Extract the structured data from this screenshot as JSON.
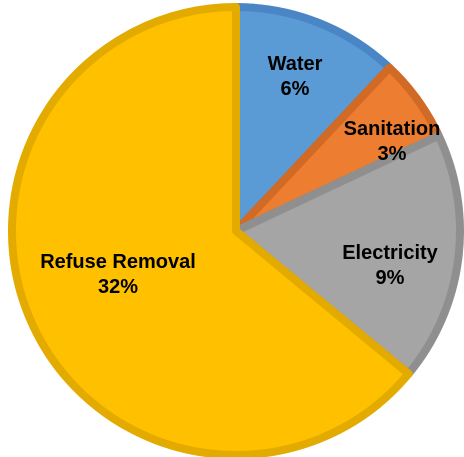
{
  "chart_data": {
    "type": "pie",
    "start_angle_deg": 0,
    "direction": "clockwise",
    "slices": [
      {
        "label": "Water",
        "percent_label": "6%",
        "value": 6,
        "color": "#5B9BD5",
        "border": "#4A86C5",
        "text_color": "#000000"
      },
      {
        "label": "Sanitation",
        "percent_label": "3%",
        "value": 3,
        "color": "#ED7D31",
        "border": "#D06A24",
        "text_color": "#000000"
      },
      {
        "label": "Electricity",
        "percent_label": "9%",
        "value": 9,
        "color": "#A5A5A5",
        "border": "#8F8F8F",
        "text_color": "#000000"
      },
      {
        "label": "Refuse Removal",
        "percent_label": "32%",
        "value": 32,
        "color": "#FFC000",
        "border": "#E3AA00",
        "text_color": "#000000"
      }
    ]
  }
}
